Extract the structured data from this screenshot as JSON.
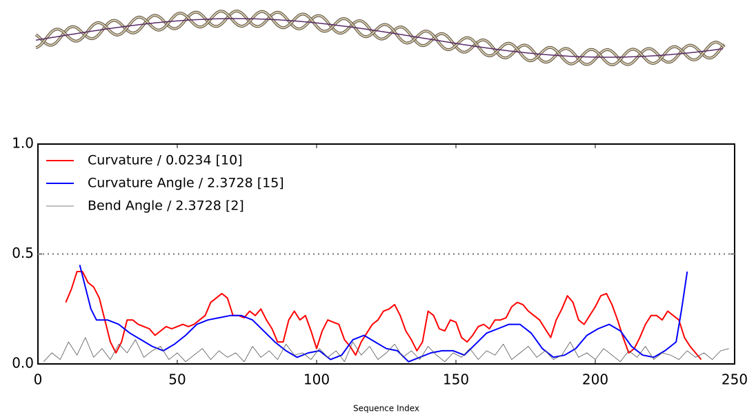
{
  "chart_data": {
    "type": "line",
    "xlabel": "Sequence Index",
    "xlim": [
      0,
      250
    ],
    "ylim": [
      0,
      1
    ],
    "xticks": [
      0,
      50,
      100,
      150,
      200,
      250
    ],
    "yticks": [
      {
        "value": 0,
        "label": "0.0"
      },
      {
        "value": 0.5,
        "label": "0.5"
      },
      {
        "value": 1,
        "label": "1.0"
      }
    ],
    "hlines": [
      0.5
    ],
    "legend": "upper-left",
    "series": [
      {
        "name": "Curvature / 0.0234 [10]",
        "color": "#ff0000",
        "x": [
          10,
          12,
          14,
          16,
          18,
          20,
          22,
          24,
          26,
          28,
          30,
          32,
          34,
          36,
          38,
          40,
          42,
          44,
          46,
          48,
          50,
          52,
          54,
          56,
          58,
          60,
          62,
          64,
          66,
          68,
          70,
          72,
          74,
          76,
          78,
          80,
          82,
          84,
          86,
          88,
          90,
          92,
          94,
          96,
          98,
          100,
          102,
          104,
          106,
          108,
          110,
          112,
          114,
          116,
          118,
          120,
          122,
          124,
          126,
          128,
          130,
          132,
          134,
          136,
          138,
          140,
          142,
          144,
          146,
          148,
          150,
          152,
          154,
          156,
          158,
          160,
          162,
          164,
          166,
          168,
          170,
          172,
          174,
          176,
          178,
          180,
          182,
          184,
          186,
          188,
          190,
          192,
          194,
          196,
          198,
          200,
          202,
          204,
          206,
          208,
          210,
          212,
          214,
          216,
          218,
          220,
          222,
          224,
          226,
          228,
          230,
          232,
          234,
          236,
          238
        ],
        "values": [
          0.28,
          0.34,
          0.42,
          0.42,
          0.37,
          0.35,
          0.3,
          0.2,
          0.1,
          0.05,
          0.1,
          0.2,
          0.2,
          0.18,
          0.17,
          0.16,
          0.13,
          0.15,
          0.17,
          0.16,
          0.17,
          0.18,
          0.17,
          0.18,
          0.2,
          0.22,
          0.28,
          0.3,
          0.32,
          0.3,
          0.22,
          0.22,
          0.21,
          0.24,
          0.22,
          0.25,
          0.2,
          0.16,
          0.1,
          0.1,
          0.2,
          0.24,
          0.2,
          0.22,
          0.15,
          0.07,
          0.15,
          0.2,
          0.19,
          0.18,
          0.11,
          0.08,
          0.04,
          0.1,
          0.14,
          0.18,
          0.2,
          0.24,
          0.25,
          0.27,
          0.22,
          0.15,
          0.11,
          0.06,
          0.1,
          0.24,
          0.22,
          0.16,
          0.15,
          0.2,
          0.19,
          0.12,
          0.1,
          0.13,
          0.17,
          0.18,
          0.16,
          0.2,
          0.2,
          0.21,
          0.26,
          0.28,
          0.27,
          0.24,
          0.22,
          0.2,
          0.16,
          0.12,
          0.2,
          0.25,
          0.31,
          0.28,
          0.2,
          0.18,
          0.22,
          0.26,
          0.31,
          0.32,
          0.27,
          0.2,
          0.12,
          0.05,
          0.07,
          0.12,
          0.18,
          0.22,
          0.22,
          0.2,
          0.24,
          0.22,
          0.2,
          0.12,
          0.08,
          0.05,
          0.02
        ]
      },
      {
        "name": "Curvature Angle / 2.3728 [15]",
        "color": "#0000ff",
        "x": [
          15,
          17,
          19,
          21,
          25,
          29,
          33,
          37,
          41,
          45,
          49,
          53,
          57,
          61,
          65,
          69,
          73,
          77,
          81,
          85,
          89,
          93,
          97,
          101,
          105,
          109,
          113,
          117,
          121,
          125,
          129,
          133,
          137,
          141,
          145,
          149,
          153,
          157,
          161,
          165,
          169,
          173,
          177,
          181,
          185,
          189,
          193,
          197,
          201,
          205,
          209,
          213,
          217,
          221,
          225,
          229,
          231,
          233
        ],
        "values": [
          0.45,
          0.35,
          0.25,
          0.2,
          0.2,
          0.18,
          0.14,
          0.11,
          0.08,
          0.06,
          0.09,
          0.13,
          0.18,
          0.2,
          0.21,
          0.22,
          0.22,
          0.2,
          0.15,
          0.1,
          0.06,
          0.03,
          0.05,
          0.06,
          0.02,
          0.04,
          0.11,
          0.13,
          0.1,
          0.07,
          0.06,
          0.01,
          0.03,
          0.05,
          0.06,
          0.06,
          0.04,
          0.09,
          0.14,
          0.16,
          0.18,
          0.18,
          0.14,
          0.07,
          0.03,
          0.04,
          0.07,
          0.13,
          0.16,
          0.18,
          0.15,
          0.08,
          0.04,
          0.03,
          0.06,
          0.1,
          0.25,
          0.42
        ]
      },
      {
        "name": "Bend Angle / 2.3728 [2]",
        "color": "#555555",
        "x": [
          2,
          5,
          8,
          11,
          14,
          17,
          20,
          23,
          26,
          29,
          32,
          35,
          38,
          41,
          44,
          47,
          50,
          53,
          56,
          59,
          62,
          65,
          68,
          71,
          74,
          77,
          80,
          83,
          86,
          89,
          92,
          95,
          98,
          101,
          104,
          107,
          110,
          113,
          116,
          119,
          122,
          125,
          128,
          131,
          134,
          137,
          140,
          143,
          146,
          149,
          152,
          155,
          158,
          161,
          164,
          167,
          170,
          173,
          176,
          179,
          182,
          185,
          188,
          191,
          194,
          197,
          200,
          203,
          206,
          209,
          212,
          215,
          218,
          221,
          224,
          227,
          230,
          233,
          236,
          239,
          242,
          245,
          248
        ],
        "values": [
          0.01,
          0.05,
          0.02,
          0.1,
          0.04,
          0.12,
          0.03,
          0.07,
          0.02,
          0.09,
          0.05,
          0.11,
          0.03,
          0.06,
          0.08,
          0.02,
          0.05,
          0.01,
          0.04,
          0.07,
          0.02,
          0.06,
          0.03,
          0.05,
          0.01,
          0.08,
          0.03,
          0.06,
          0.02,
          0.09,
          0.04,
          0.05,
          0.02,
          0.07,
          0.03,
          0.06,
          0.01,
          0.1,
          0.04,
          0.08,
          0.02,
          0.05,
          0.09,
          0.03,
          0.06,
          0.02,
          0.08,
          0.04,
          0.01,
          0.05,
          0.03,
          0.07,
          0.02,
          0.06,
          0.04,
          0.09,
          0.02,
          0.05,
          0.08,
          0.03,
          0.06,
          0.02,
          0.04,
          0.1,
          0.03,
          0.05,
          0.02,
          0.07,
          0.04,
          0.01,
          0.06,
          0.03,
          0.08,
          0.02,
          0.05,
          0.04,
          0.02,
          0.06,
          0.03,
          0.05,
          0.02,
          0.06,
          0.07
        ]
      }
    ]
  }
}
